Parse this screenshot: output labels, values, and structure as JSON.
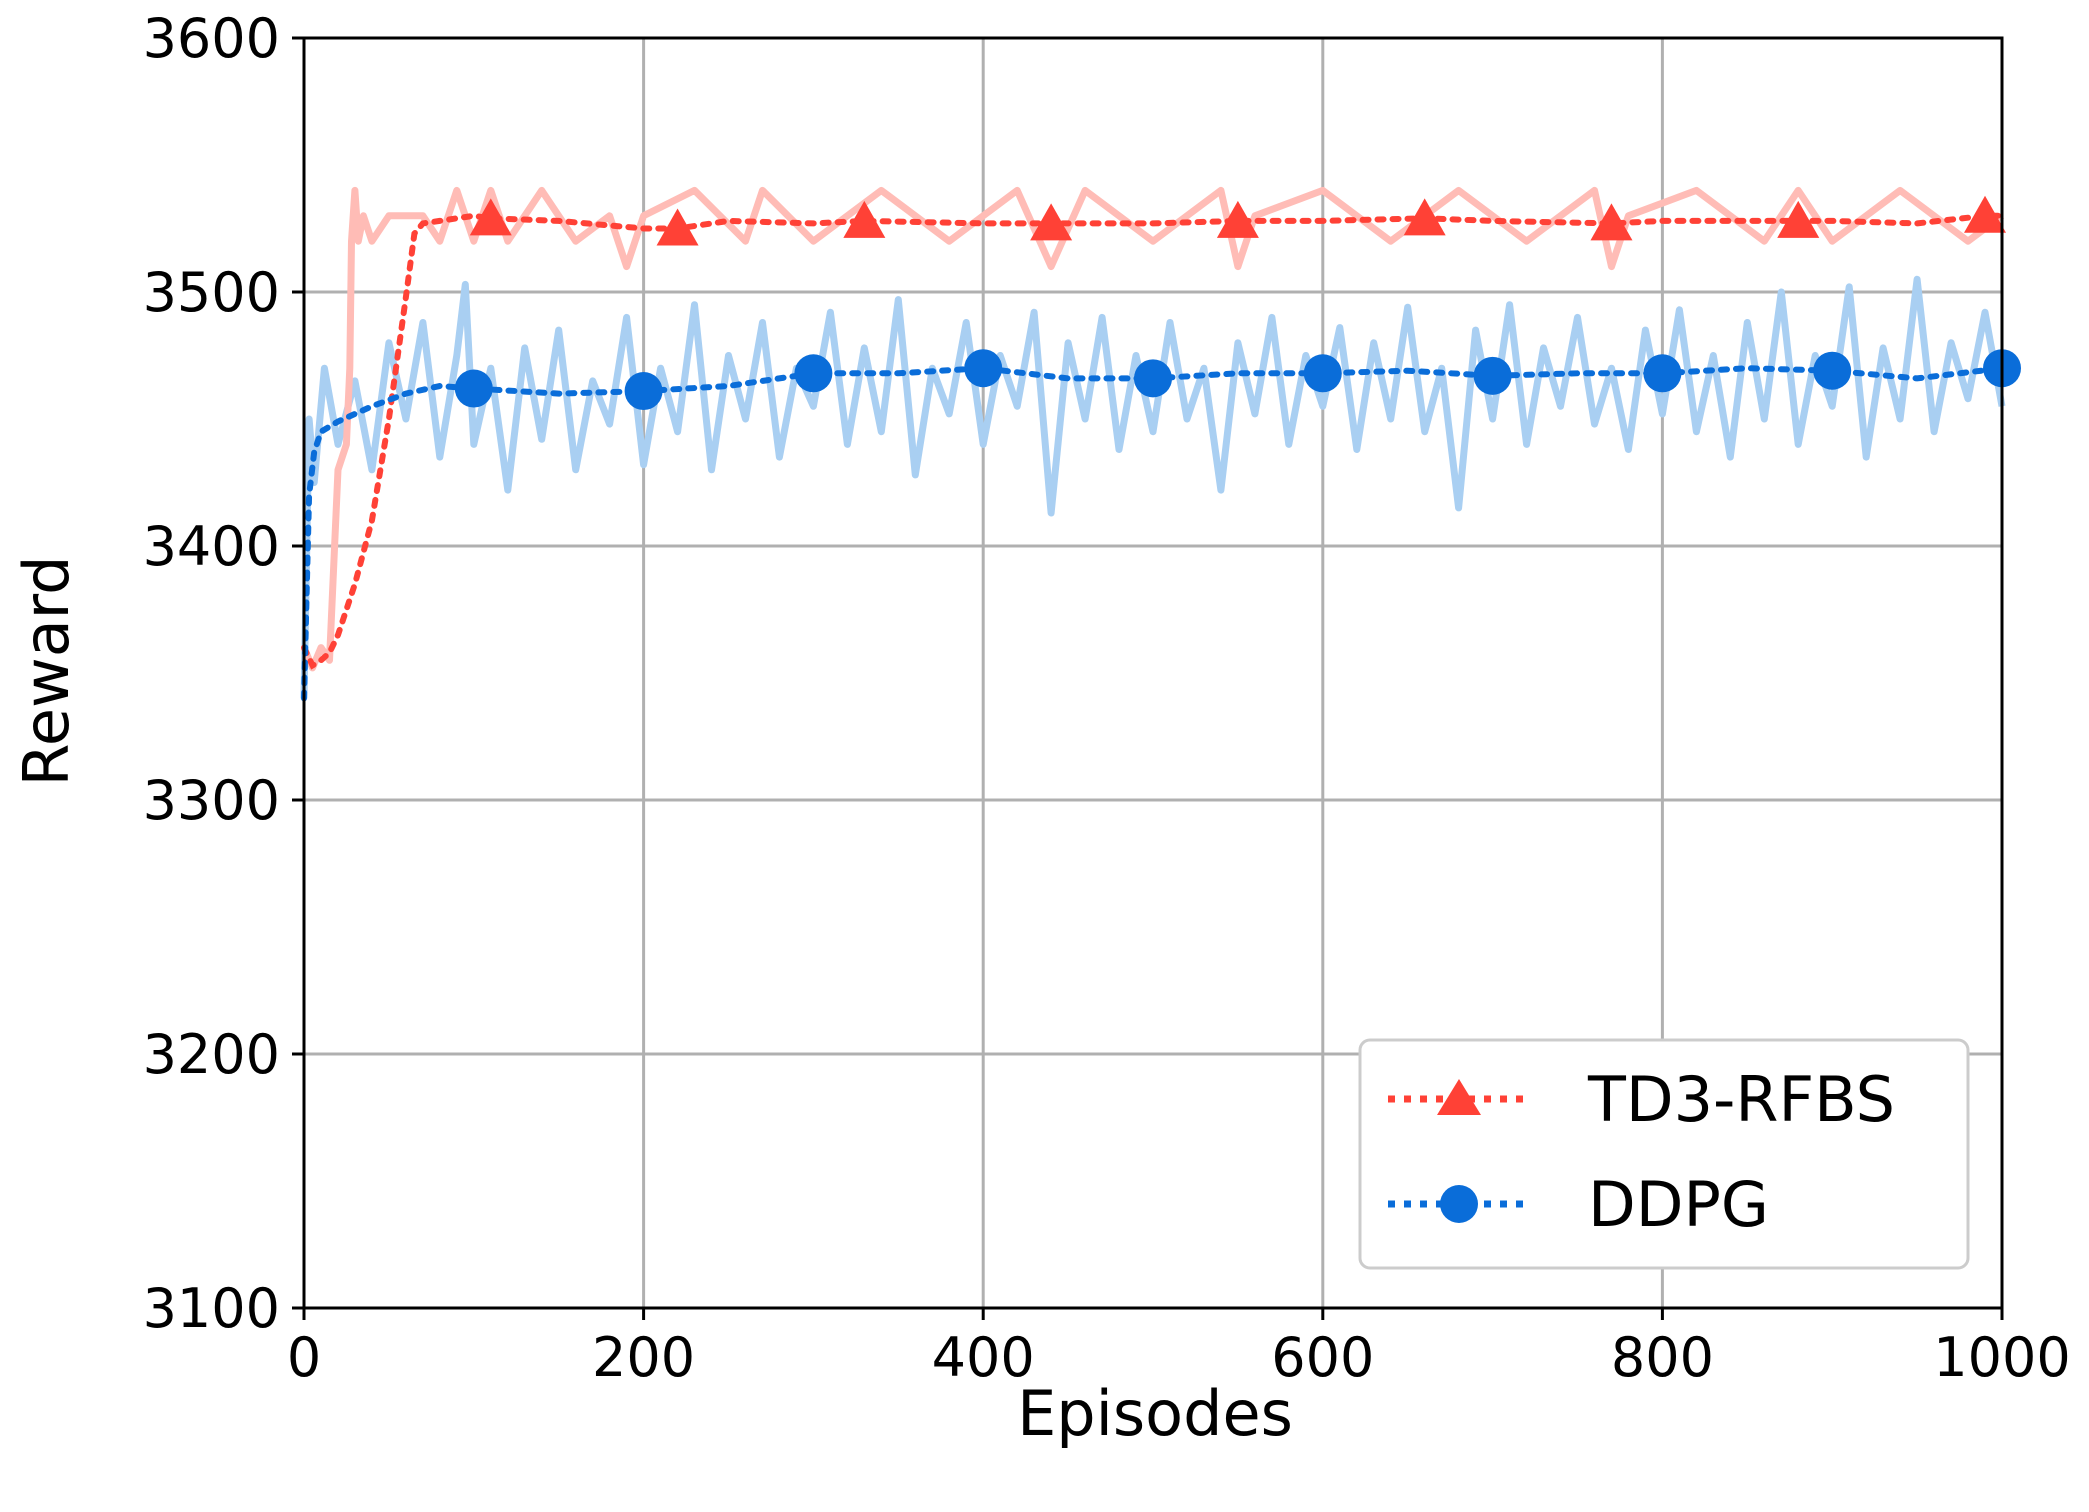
{
  "chart_data": {
    "type": "line",
    "title": "",
    "xlabel": "Episodes",
    "ylabel": "Reward",
    "xlim": [
      0,
      1000
    ],
    "ylim": [
      3100,
      3600
    ],
    "grid": true,
    "legend_position": "bottom-right",
    "xticks": [
      0,
      200,
      400,
      600,
      800,
      1000
    ],
    "xtick_labels": [
      "0",
      "200",
      "400",
      "600",
      "800",
      "1000"
    ],
    "yticks": [
      3100,
      3200,
      3300,
      3400,
      3500,
      3600
    ],
    "ytick_labels": [
      "3100",
      "3200",
      "3300",
      "3400",
      "3500",
      "3600"
    ],
    "series": [
      {
        "name": "TD3-RFBS",
        "color": "#ff4136",
        "raw_color": "#ffbcb6",
        "marker": "triangle",
        "smoothed": {
          "x": [
            0,
            5,
            10,
            15,
            20,
            30,
            40,
            50,
            60,
            65,
            70,
            80,
            90,
            100,
            110,
            150,
            200,
            220,
            250,
            300,
            330,
            400,
            440,
            500,
            550,
            600,
            660,
            700,
            770,
            800,
            880,
            900,
            950,
            990,
            1000
          ],
          "y": [
            3360,
            3353,
            3355,
            3358,
            3365,
            3385,
            3410,
            3450,
            3498,
            3523,
            3527,
            3528,
            3529,
            3530,
            3529,
            3528,
            3525,
            3525,
            3528,
            3527,
            3528,
            3527,
            3527,
            3527,
            3528,
            3528,
            3529,
            3528,
            3527,
            3528,
            3528,
            3528,
            3527,
            3530,
            3530
          ]
        },
        "markers": {
          "x": [
            110,
            220,
            330,
            440,
            550,
            660,
            770,
            880,
            990
          ],
          "y": [
            3529,
            3525,
            3528,
            3527,
            3528,
            3529,
            3527,
            3528,
            3530
          ]
        },
        "raw": {
          "x": [
            0,
            5,
            10,
            15,
            20,
            25,
            27,
            28,
            30,
            32,
            35,
            40,
            50,
            60,
            70,
            80,
            90,
            100,
            110,
            120,
            140,
            160,
            180,
            190,
            200,
            230,
            260,
            270,
            300,
            340,
            380,
            420,
            440,
            460,
            500,
            540,
            550,
            560,
            600,
            640,
            680,
            720,
            760,
            770,
            780,
            820,
            860,
            880,
            900,
            940,
            980,
            1000
          ],
          "y": [
            3360,
            3352,
            3360,
            3355,
            3430,
            3440,
            3470,
            3520,
            3540,
            3520,
            3530,
            3520,
            3530,
            3530,
            3530,
            3520,
            3540,
            3520,
            3540,
            3520,
            3540,
            3520,
            3530,
            3510,
            3530,
            3540,
            3520,
            3540,
            3520,
            3540,
            3520,
            3540,
            3510,
            3540,
            3520,
            3540,
            3510,
            3530,
            3540,
            3520,
            3540,
            3520,
            3540,
            3510,
            3530,
            3540,
            3520,
            3540,
            3520,
            3540,
            3520,
            3530
          ]
        }
      },
      {
        "name": "DDPG",
        "color": "#0a6dd9",
        "raw_color": "#a9cff2",
        "marker": "circle",
        "smoothed": {
          "x": [
            0,
            3,
            6,
            10,
            20,
            40,
            60,
            80,
            100,
            150,
            200,
            250,
            300,
            350,
            400,
            450,
            500,
            550,
            600,
            650,
            700,
            750,
            800,
            850,
            900,
            950,
            1000
          ],
          "y": [
            3340,
            3420,
            3437,
            3445,
            3449,
            3455,
            3460,
            3463,
            3462,
            3460,
            3461,
            3463,
            3468,
            3468,
            3470,
            3466,
            3466,
            3468,
            3468,
            3469,
            3467,
            3468,
            3468,
            3470,
            3469,
            3466,
            3470
          ]
        },
        "markers": {
          "x": [
            100,
            200,
            300,
            400,
            500,
            600,
            700,
            800,
            900,
            1000
          ],
          "y": [
            3462,
            3461,
            3468,
            3470,
            3466,
            3468,
            3467,
            3468,
            3469,
            3470
          ]
        },
        "raw": {
          "x": [
            0,
            3,
            6,
            12,
            20,
            30,
            40,
            50,
            60,
            70,
            80,
            90,
            95,
            100,
            110,
            120,
            130,
            140,
            150,
            160,
            170,
            180,
            190,
            200,
            210,
            220,
            230,
            240,
            250,
            260,
            270,
            280,
            290,
            300,
            310,
            320,
            330,
            340,
            350,
            360,
            370,
            380,
            390,
            400,
            410,
            420,
            430,
            440,
            450,
            460,
            470,
            480,
            490,
            500,
            510,
            520,
            530,
            540,
            550,
            560,
            570,
            580,
            590,
            600,
            610,
            620,
            630,
            640,
            650,
            660,
            670,
            680,
            690,
            700,
            710,
            720,
            730,
            740,
            750,
            760,
            770,
            780,
            790,
            800,
            810,
            820,
            830,
            840,
            850,
            860,
            870,
            880,
            890,
            900,
            910,
            920,
            930,
            940,
            950,
            960,
            970,
            980,
            990,
            1000
          ],
          "y": [
            3340,
            3450,
            3425,
            3470,
            3440,
            3465,
            3430,
            3480,
            3450,
            3488,
            3435,
            3475,
            3503,
            3440,
            3470,
            3422,
            3478,
            3442,
            3485,
            3430,
            3465,
            3448,
            3490,
            3432,
            3470,
            3445,
            3495,
            3430,
            3475,
            3450,
            3488,
            3435,
            3470,
            3455,
            3492,
            3440,
            3478,
            3445,
            3497,
            3428,
            3470,
            3452,
            3488,
            3440,
            3475,
            3455,
            3492,
            3413,
            3480,
            3450,
            3490,
            3438,
            3475,
            3445,
            3488,
            3450,
            3470,
            3422,
            3480,
            3452,
            3490,
            3440,
            3475,
            3455,
            3486,
            3438,
            3480,
            3450,
            3494,
            3445,
            3470,
            3415,
            3485,
            3450,
            3495,
            3440,
            3478,
            3455,
            3490,
            3448,
            3470,
            3438,
            3485,
            3452,
            3493,
            3445,
            3475,
            3435,
            3488,
            3450,
            3500,
            3440,
            3475,
            3455,
            3502,
            3435,
            3478,
            3450,
            3505,
            3445,
            3480,
            3458,
            3492,
            3455
          ]
        }
      }
    ]
  }
}
